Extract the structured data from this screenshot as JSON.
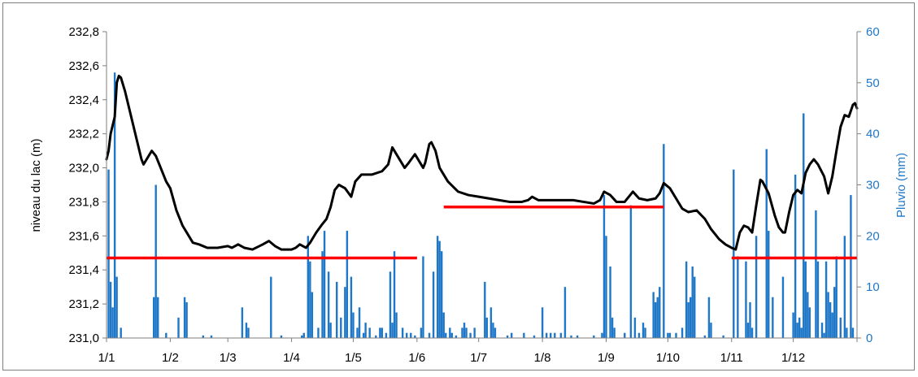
{
  "chart_data": {
    "type": "bar+line",
    "title": "",
    "xlabel": "",
    "ylabel_left": "niveau du lac (m)",
    "ylabel_right": "Pluvio (mm)",
    "ylim_left": [
      231.0,
      232.8
    ],
    "ylim_right": [
      0,
      60
    ],
    "yticks_left": [
      "232,8",
      "232,6",
      "232,4",
      "232,2",
      "232,0",
      "231,8",
      "231,6",
      "231,4",
      "231,2",
      "231,0"
    ],
    "yticks_right": [
      "60",
      "50",
      "40",
      "30",
      "20",
      "10",
      "0"
    ],
    "x_tick_labels": [
      "1/1",
      "1/2",
      "1/3",
      "1/4",
      "1/5",
      "1/6",
      "1/7",
      "1/8",
      "1/9",
      "1/10",
      "1/11",
      "1/12"
    ],
    "x_tick_days": [
      1,
      32,
      60,
      91,
      121,
      152,
      182,
      213,
      244,
      274,
      305,
      335
    ],
    "x_range_days": [
      1,
      366
    ],
    "grid": "none",
    "colors": {
      "level_line": "#000000",
      "rain_bars": "#1f77c8",
      "reference_lines": "#ff0000",
      "right_axis": "#1f77c8"
    },
    "level_series": {
      "name": "niveau du lac (m)",
      "points": [
        [
          1,
          232.05
        ],
        [
          2,
          232.1
        ],
        [
          3,
          232.2
        ],
        [
          5,
          232.3
        ],
        [
          6,
          232.5
        ],
        [
          7,
          232.54
        ],
        [
          8,
          232.53
        ],
        [
          10,
          232.45
        ],
        [
          13,
          232.3
        ],
        [
          16,
          232.15
        ],
        [
          18,
          232.05
        ],
        [
          19,
          232.02
        ],
        [
          21,
          232.06
        ],
        [
          23,
          232.1
        ],
        [
          25,
          232.07
        ],
        [
          28,
          231.98
        ],
        [
          30,
          231.92
        ],
        [
          32,
          231.88
        ],
        [
          35,
          231.75
        ],
        [
          38,
          231.66
        ],
        [
          41,
          231.6
        ],
        [
          43,
          231.56
        ],
        [
          46,
          231.55
        ],
        [
          50,
          231.53
        ],
        [
          55,
          231.53
        ],
        [
          60,
          231.54
        ],
        [
          62,
          231.53
        ],
        [
          65,
          231.55
        ],
        [
          68,
          231.53
        ],
        [
          72,
          231.52
        ],
        [
          77,
          231.55
        ],
        [
          80,
          231.57
        ],
        [
          83,
          231.54
        ],
        [
          86,
          231.52
        ],
        [
          91,
          231.52
        ],
        [
          93,
          231.53
        ],
        [
          95,
          231.55
        ],
        [
          98,
          231.53
        ],
        [
          100,
          231.56
        ],
        [
          103,
          231.62
        ],
        [
          106,
          231.67
        ],
        [
          108,
          231.7
        ],
        [
          110,
          231.77
        ],
        [
          112,
          231.87
        ],
        [
          114,
          231.9
        ],
        [
          117,
          231.88
        ],
        [
          120,
          231.83
        ],
        [
          122,
          231.92
        ],
        [
          125,
          231.96
        ],
        [
          130,
          231.96
        ],
        [
          135,
          231.98
        ],
        [
          138,
          232.02
        ],
        [
          140,
          232.12
        ],
        [
          142,
          232.08
        ],
        [
          144,
          232.04
        ],
        [
          146,
          232.0
        ],
        [
          148,
          232.03
        ],
        [
          151,
          232.08
        ],
        [
          153,
          232.04
        ],
        [
          155,
          232.0
        ],
        [
          156,
          232.03
        ],
        [
          158,
          232.14
        ],
        [
          159,
          232.15
        ],
        [
          161,
          232.1
        ],
        [
          163,
          232.0
        ],
        [
          167,
          231.92
        ],
        [
          172,
          231.86
        ],
        [
          177,
          231.84
        ],
        [
          182,
          231.83
        ],
        [
          187,
          231.82
        ],
        [
          192,
          231.81
        ],
        [
          197,
          231.8
        ],
        [
          203,
          231.8
        ],
        [
          206,
          231.81
        ],
        [
          208,
          231.83
        ],
        [
          211,
          231.81
        ],
        [
          216,
          231.81
        ],
        [
          222,
          231.81
        ],
        [
          228,
          231.81
        ],
        [
          233,
          231.8
        ],
        [
          238,
          231.79
        ],
        [
          241,
          231.81
        ],
        [
          243,
          231.86
        ],
        [
          246,
          231.84
        ],
        [
          249,
          231.8
        ],
        [
          253,
          231.8
        ],
        [
          257,
          231.86
        ],
        [
          260,
          231.82
        ],
        [
          264,
          231.81
        ],
        [
          268,
          231.82
        ],
        [
          270,
          231.85
        ],
        [
          272,
          231.91
        ],
        [
          275,
          231.88
        ],
        [
          278,
          231.82
        ],
        [
          281,
          231.76
        ],
        [
          284,
          231.74
        ],
        [
          288,
          231.75
        ],
        [
          292,
          231.7
        ],
        [
          295,
          231.64
        ],
        [
          299,
          231.58
        ],
        [
          302,
          231.55
        ],
        [
          305,
          231.53
        ],
        [
          307,
          231.52
        ],
        [
          309,
          231.62
        ],
        [
          311,
          231.66
        ],
        [
          313,
          231.65
        ],
        [
          315,
          231.62
        ],
        [
          317,
          231.78
        ],
        [
          319,
          231.93
        ],
        [
          320,
          231.92
        ],
        [
          323,
          231.85
        ],
        [
          326,
          231.72
        ],
        [
          328,
          231.65
        ],
        [
          330,
          231.62
        ],
        [
          331,
          231.62
        ],
        [
          333,
          231.74
        ],
        [
          335,
          231.84
        ],
        [
          337,
          231.87
        ],
        [
          339,
          231.85
        ],
        [
          341,
          231.97
        ],
        [
          343,
          232.02
        ],
        [
          345,
          232.05
        ],
        [
          347,
          232.02
        ],
        [
          350,
          231.95
        ],
        [
          352,
          231.85
        ],
        [
          354,
          231.95
        ],
        [
          356,
          232.1
        ],
        [
          358,
          232.24
        ],
        [
          360,
          232.31
        ],
        [
          362,
          232.3
        ],
        [
          364,
          232.37
        ],
        [
          365,
          232.38
        ],
        [
          366,
          232.35
        ]
      ]
    },
    "rainfall_series": {
      "name": "Pluvio (mm)",
      "points": [
        [
          2,
          33
        ],
        [
          3,
          11
        ],
        [
          4,
          6
        ],
        [
          5,
          52
        ],
        [
          6,
          12
        ],
        [
          8,
          2
        ],
        [
          25,
          30
        ],
        [
          26,
          8
        ],
        [
          24,
          8
        ],
        [
          30,
          1
        ],
        [
          36,
          4
        ],
        [
          39,
          8
        ],
        [
          40,
          7
        ],
        [
          48,
          0.5
        ],
        [
          52,
          0.5
        ],
        [
          67,
          6
        ],
        [
          69,
          3
        ],
        [
          70,
          2
        ],
        [
          81,
          12
        ],
        [
          86,
          0.5
        ],
        [
          96,
          0.5
        ],
        [
          97,
          1
        ],
        [
          99,
          20
        ],
        [
          100,
          15
        ],
        [
          101,
          9
        ],
        [
          104,
          2
        ],
        [
          106,
          17
        ],
        [
          107,
          21
        ],
        [
          109,
          13
        ],
        [
          110,
          3
        ],
        [
          113,
          11
        ],
        [
          115,
          4
        ],
        [
          117,
          10
        ],
        [
          118,
          21
        ],
        [
          120,
          12
        ],
        [
          121,
          5
        ],
        [
          123,
          2
        ],
        [
          124,
          6
        ],
        [
          126,
          1
        ],
        [
          127,
          3
        ],
        [
          129,
          2
        ],
        [
          132,
          0.5
        ],
        [
          134,
          2
        ],
        [
          135,
          2
        ],
        [
          137,
          1
        ],
        [
          139,
          13
        ],
        [
          140,
          3
        ],
        [
          141,
          17
        ],
        [
          142,
          5
        ],
        [
          145,
          2
        ],
        [
          147,
          1
        ],
        [
          149,
          1
        ],
        [
          151,
          0.5
        ],
        [
          154,
          2
        ],
        [
          155,
          16
        ],
        [
          158,
          1
        ],
        [
          160,
          13
        ],
        [
          162,
          20
        ],
        [
          163,
          19
        ],
        [
          164,
          17
        ],
        [
          165,
          5
        ],
        [
          166,
          1
        ],
        [
          168,
          2
        ],
        [
          169,
          1
        ],
        [
          171,
          0.5
        ],
        [
          174,
          2
        ],
        [
          175,
          3
        ],
        [
          176,
          2
        ],
        [
          178,
          1
        ],
        [
          180,
          2
        ],
        [
          185,
          11
        ],
        [
          186,
          4
        ],
        [
          188,
          6
        ],
        [
          189,
          3
        ],
        [
          190,
          2
        ],
        [
          196,
          0.5
        ],
        [
          198,
          1
        ],
        [
          204,
          1
        ],
        [
          209,
          0.5
        ],
        [
          213,
          6
        ],
        [
          215,
          1
        ],
        [
          217,
          1
        ],
        [
          219,
          1
        ],
        [
          222,
          1
        ],
        [
          224,
          10
        ],
        [
          227,
          0.5
        ],
        [
          230,
          0.5
        ],
        [
          238,
          0.5
        ],
        [
          242,
          1
        ],
        [
          243,
          28
        ],
        [
          244,
          20
        ],
        [
          246,
          14
        ],
        [
          247,
          4
        ],
        [
          248,
          2
        ],
        [
          253,
          1
        ],
        [
          256,
          26
        ],
        [
          258,
          4
        ],
        [
          260,
          1
        ],
        [
          262,
          3
        ],
        [
          263,
          2
        ],
        [
          267,
          9
        ],
        [
          268,
          7
        ],
        [
          269,
          8
        ],
        [
          270,
          10
        ],
        [
          272,
          38
        ],
        [
          274,
          1
        ],
        [
          275,
          1
        ],
        [
          278,
          1
        ],
        [
          281,
          2
        ],
        [
          283,
          15
        ],
        [
          284,
          7
        ],
        [
          285,
          8
        ],
        [
          286,
          14
        ],
        [
          287,
          12
        ],
        [
          292,
          0.5
        ],
        [
          294,
          8
        ],
        [
          295,
          3
        ],
        [
          301,
          0.5
        ],
        [
          306,
          33
        ],
        [
          308,
          16
        ],
        [
          312,
          15
        ],
        [
          313,
          3
        ],
        [
          314,
          7
        ],
        [
          315,
          2
        ],
        [
          317,
          20
        ],
        [
          322,
          37
        ],
        [
          323,
          21
        ],
        [
          325,
          8
        ],
        [
          330,
          12
        ],
        [
          335,
          5
        ],
        [
          336,
          32
        ],
        [
          337,
          3
        ],
        [
          338,
          4
        ],
        [
          339,
          2
        ],
        [
          340,
          44
        ],
        [
          341,
          15
        ],
        [
          342,
          9
        ],
        [
          343,
          6
        ],
        [
          346,
          25
        ],
        [
          347,
          15
        ],
        [
          349,
          3
        ],
        [
          350,
          1
        ],
        [
          351,
          15
        ],
        [
          352,
          9
        ],
        [
          353,
          7
        ],
        [
          354,
          5
        ],
        [
          355,
          10
        ],
        [
          356,
          16
        ],
        [
          358,
          4
        ],
        [
          360,
          20
        ],
        [
          361,
          2
        ],
        [
          363,
          28
        ],
        [
          364,
          2
        ]
      ]
    },
    "reference_lines": [
      {
        "x_start_day": 1,
        "x_end_day": 152,
        "level": 231.47
      },
      {
        "x_start_day": 165,
        "x_end_day": 272,
        "level": 231.77
      },
      {
        "x_start_day": 305,
        "x_end_day": 366,
        "level": 231.47
      }
    ]
  }
}
